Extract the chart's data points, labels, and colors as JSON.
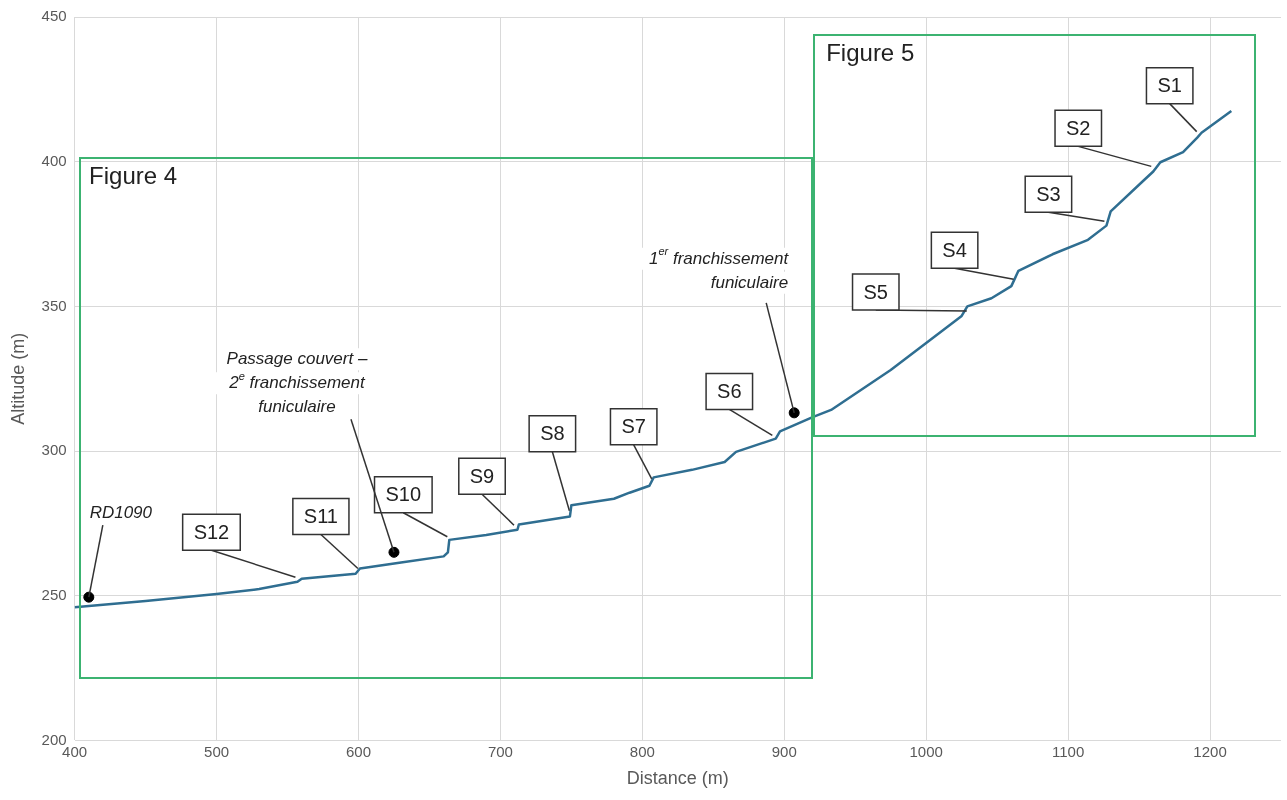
{
  "chart_data": {
    "type": "line",
    "xlabel": "Distance (m)",
    "ylabel": "Altitude (m)",
    "xlim": [
      400,
      1250
    ],
    "xticks": [
      400,
      500,
      600,
      700,
      800,
      900,
      1000,
      1100,
      1200
    ],
    "ylim": [
      200,
      450
    ],
    "yticks": [
      200,
      250,
      300,
      350,
      400,
      450
    ],
    "grid": true,
    "legend": false,
    "series": [
      {
        "color": "#2f6e91",
        "marker": "none",
        "line_style": "solid",
        "x": [
          400,
          450,
          500,
          530,
          557,
          560,
          598,
          601,
          630,
          660,
          663,
          664,
          690,
          712,
          713,
          749,
          750,
          780,
          791,
          805,
          808,
          835,
          858,
          866,
          894,
          897,
          920,
          933,
          975,
          1025,
          1029,
          1046,
          1060,
          1065,
          1089,
          1114,
          1127,
          1130,
          1153,
          1160,
          1165,
          1181,
          1191,
          1194,
          1215
        ],
        "values": [
          246,
          248.2,
          250.6,
          252.3,
          254.8,
          255.9,
          257.6,
          259.4,
          261.5,
          263.6,
          265,
          269.3,
          271,
          272.8,
          274.6,
          277.4,
          281.3,
          283.5,
          285.6,
          288,
          290.9,
          293.5,
          296.2,
          299.7,
          304.3,
          306.8,
          311.7,
          314.2,
          328,
          346.7,
          350,
          352.8,
          357,
          362.3,
          368,
          373,
          377.9,
          382.8,
          393.4,
          396.6,
          399.8,
          403.3,
          408.3,
          410,
          417.5
        ]
      },
      {
        "type": "scatter",
        "color": "#000000",
        "marker": "circle",
        "x": [
          410,
          625,
          907
        ],
        "values": [
          249.5,
          265,
          313.2
        ]
      }
    ],
    "annotations": [
      {
        "text": "S1",
        "x": 1192,
        "y": 409
      },
      {
        "text": "S2",
        "x": 1160,
        "y": 397
      },
      {
        "text": "S3",
        "x": 1127,
        "y": 378
      },
      {
        "text": "S4",
        "x": 1063,
        "y": 358
      },
      {
        "text": "S5",
        "x": 1030,
        "y": 347
      },
      {
        "text": "S6",
        "x": 893,
        "y": 304
      },
      {
        "text": "S7",
        "x": 808,
        "y": 289
      },
      {
        "text": "S8",
        "x": 750,
        "y": 278
      },
      {
        "text": "S9",
        "x": 711,
        "y": 273
      },
      {
        "text": "S10",
        "x": 664,
        "y": 269
      },
      {
        "text": "S11",
        "x": 601,
        "y": 258
      },
      {
        "text": "S12",
        "x": 557,
        "y": 255
      },
      {
        "text": "RD1090",
        "x": 410,
        "y": 249.5
      },
      {
        "text": "Passage couvert –\n2$^{e}$ franchissement\nfuniculaire",
        "x": 625,
        "y": 265
      },
      {
        "text": "1$^{er}$ franchissement\nfuniculaire",
        "x": 907,
        "y": 313.2
      },
      "Figure 4",
      "Figure 5"
    ]
  }
}
